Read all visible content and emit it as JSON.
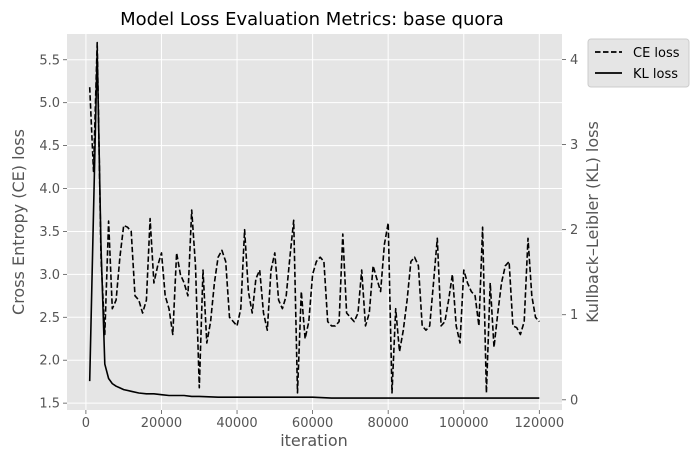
{
  "chart_data": {
    "type": "line",
    "title": "Model Loss Evaluation Metrics: base quora",
    "xlabel": "iteration",
    "ylabel_left": "Cross Entropy (CE) loss",
    "ylabel_right": "Kullback–Leibler (KL) loss",
    "xlim": [
      -5000,
      126000
    ],
    "ylim_left": [
      1.42,
      5.8
    ],
    "ylim_right": [
      -0.12,
      4.3
    ],
    "x_ticks": [
      0,
      20000,
      40000,
      60000,
      80000,
      100000,
      120000
    ],
    "x_tick_labels": [
      "0",
      "20000",
      "40000",
      "60000",
      "80000",
      "100000",
      "120000"
    ],
    "y_left_ticks": [
      1.5,
      2.0,
      2.5,
      3.0,
      3.5,
      4.0,
      4.5,
      5.0,
      5.5
    ],
    "y_left_tick_labels": [
      "1.5",
      "2.0",
      "2.5",
      "3.0",
      "3.5",
      "4.0",
      "4.5",
      "5.0",
      "5.5"
    ],
    "y_right_ticks": [
      0,
      1,
      2,
      3,
      4
    ],
    "y_right_tick_labels": [
      "0",
      "1",
      "2",
      "3",
      "4"
    ],
    "grid": true,
    "legend_position": "outside-top-right",
    "background_color": "#e5e5e5",
    "series": [
      {
        "name": "CE loss",
        "axis": "left",
        "style": "dashed",
        "color": "#000000",
        "x": [
          1000,
          2000,
          3000,
          4000,
          5000,
          6000,
          7000,
          8000,
          9000,
          10000,
          11000,
          12000,
          13000,
          14000,
          15000,
          16000,
          17000,
          18000,
          19000,
          20000,
          21000,
          22000,
          23000,
          24000,
          25000,
          26000,
          27000,
          28000,
          29000,
          30000,
          31000,
          32000,
          33000,
          34000,
          35000,
          36000,
          37000,
          38000,
          39000,
          40000,
          41000,
          42000,
          43000,
          44000,
          45000,
          46000,
          47000,
          48000,
          49000,
          50000,
          51000,
          52000,
          53000,
          54000,
          55000,
          56000,
          57000,
          58000,
          59000,
          60000,
          61000,
          62000,
          63000,
          64000,
          65000,
          66000,
          67000,
          68000,
          69000,
          70000,
          71000,
          72000,
          73000,
          74000,
          75000,
          76000,
          77000,
          78000,
          79000,
          80000,
          81000,
          82000,
          83000,
          84000,
          85000,
          86000,
          87000,
          88000,
          89000,
          90000,
          91000,
          92000,
          93000,
          94000,
          95000,
          96000,
          97000,
          98000,
          99000,
          100000,
          101000,
          102000,
          103000,
          104000,
          105000,
          106000,
          107000,
          108000,
          109000,
          110000,
          111000,
          112000,
          113000,
          114000,
          115000,
          116000,
          117000,
          118000,
          119000,
          120000
        ],
        "values": [
          5.18,
          4.2,
          5.7,
          3.2,
          2.3,
          3.62,
          2.6,
          2.7,
          3.2,
          3.57,
          3.55,
          3.5,
          2.75,
          2.7,
          2.55,
          2.7,
          3.65,
          2.9,
          3.1,
          3.25,
          2.75,
          2.6,
          2.3,
          3.25,
          3.0,
          2.9,
          2.75,
          3.75,
          3.1,
          1.68,
          3.05,
          2.2,
          2.45,
          2.9,
          3.2,
          3.28,
          3.15,
          2.5,
          2.45,
          2.4,
          2.6,
          3.52,
          2.8,
          2.55,
          2.95,
          3.05,
          2.55,
          2.35,
          3.05,
          3.25,
          2.7,
          2.6,
          2.75,
          3.2,
          3.63,
          1.62,
          2.8,
          2.25,
          2.45,
          3.0,
          3.15,
          3.2,
          3.15,
          2.45,
          2.4,
          2.4,
          2.45,
          3.47,
          2.55,
          2.5,
          2.45,
          2.55,
          3.05,
          2.4,
          2.55,
          3.1,
          2.95,
          2.8,
          3.35,
          3.6,
          1.62,
          2.6,
          2.1,
          2.35,
          2.7,
          3.15,
          3.2,
          3.1,
          2.4,
          2.35,
          2.4,
          2.9,
          3.42,
          2.4,
          2.45,
          2.7,
          3.0,
          2.4,
          2.2,
          3.05,
          2.9,
          2.8,
          2.75,
          2.4,
          3.55,
          1.62,
          2.9,
          2.15,
          2.55,
          2.9,
          3.1,
          3.15,
          2.4,
          2.38,
          2.3,
          2.45,
          3.42,
          2.75,
          2.5,
          2.45
        ]
      },
      {
        "name": "KL loss",
        "axis": "right",
        "style": "solid",
        "color": "#000000",
        "x": [
          1000,
          2000,
          3000,
          4000,
          5000,
          6000,
          7000,
          8000,
          9000,
          10000,
          12000,
          14000,
          16000,
          18000,
          20000,
          22000,
          24000,
          26000,
          28000,
          30000,
          35000,
          40000,
          45000,
          50000,
          55000,
          60000,
          65000,
          70000,
          75000,
          80000,
          85000,
          90000,
          95000,
          100000,
          105000,
          110000,
          115000,
          120000
        ],
        "values": [
          0.22,
          2.2,
          4.1,
          1.8,
          0.42,
          0.25,
          0.19,
          0.16,
          0.14,
          0.12,
          0.1,
          0.08,
          0.07,
          0.07,
          0.06,
          0.05,
          0.05,
          0.05,
          0.04,
          0.04,
          0.03,
          0.03,
          0.03,
          0.03,
          0.03,
          0.03,
          0.02,
          0.02,
          0.02,
          0.02,
          0.02,
          0.02,
          0.02,
          0.02,
          0.02,
          0.02,
          0.02,
          0.02
        ]
      }
    ]
  }
}
